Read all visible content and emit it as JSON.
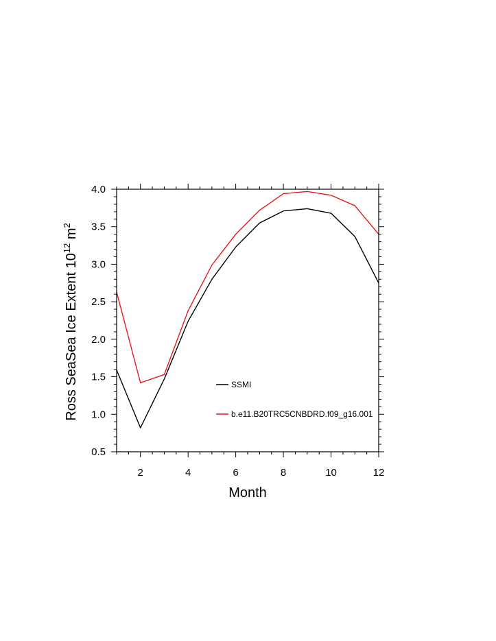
{
  "chart_data": {
    "type": "line",
    "xlabel": "Month",
    "ylabel": {
      "prefix": "Ross SeaSea Ice Extent 10",
      "exp": "12",
      "unit": " m",
      "unit_exp": "2"
    },
    "xlim": [
      1,
      12
    ],
    "ylim": [
      0.5,
      4.0
    ],
    "x_ticks": [
      2,
      4,
      6,
      8,
      10,
      12
    ],
    "x_tick_labels": [
      "2",
      "4",
      "6",
      "8",
      "10",
      "12"
    ],
    "y_ticks": [
      0.5,
      1.0,
      1.5,
      2.0,
      2.5,
      3.0,
      3.5,
      4.0
    ],
    "y_tick_labels": [
      "0.5",
      "1.0",
      "1.5",
      "2.0",
      "2.5",
      "3.0",
      "3.5",
      "4.0"
    ],
    "grid": false,
    "legend_placement": "center-right",
    "x": [
      1,
      2,
      3,
      4,
      5,
      6,
      7,
      8,
      9,
      10,
      11,
      12
    ],
    "series": [
      {
        "name": "SSMI",
        "color": "#000000",
        "values": [
          1.59,
          0.82,
          1.47,
          2.24,
          2.8,
          3.23,
          3.55,
          3.71,
          3.74,
          3.68,
          3.37,
          2.75
        ]
      },
      {
        "name": "b.e11.B20TRC5CNBDRD.f09_g16.001",
        "color": "#e31a1c",
        "values": [
          2.63,
          1.42,
          1.53,
          2.38,
          2.99,
          3.4,
          3.72,
          3.94,
          3.97,
          3.92,
          3.78,
          3.4
        ]
      }
    ]
  }
}
